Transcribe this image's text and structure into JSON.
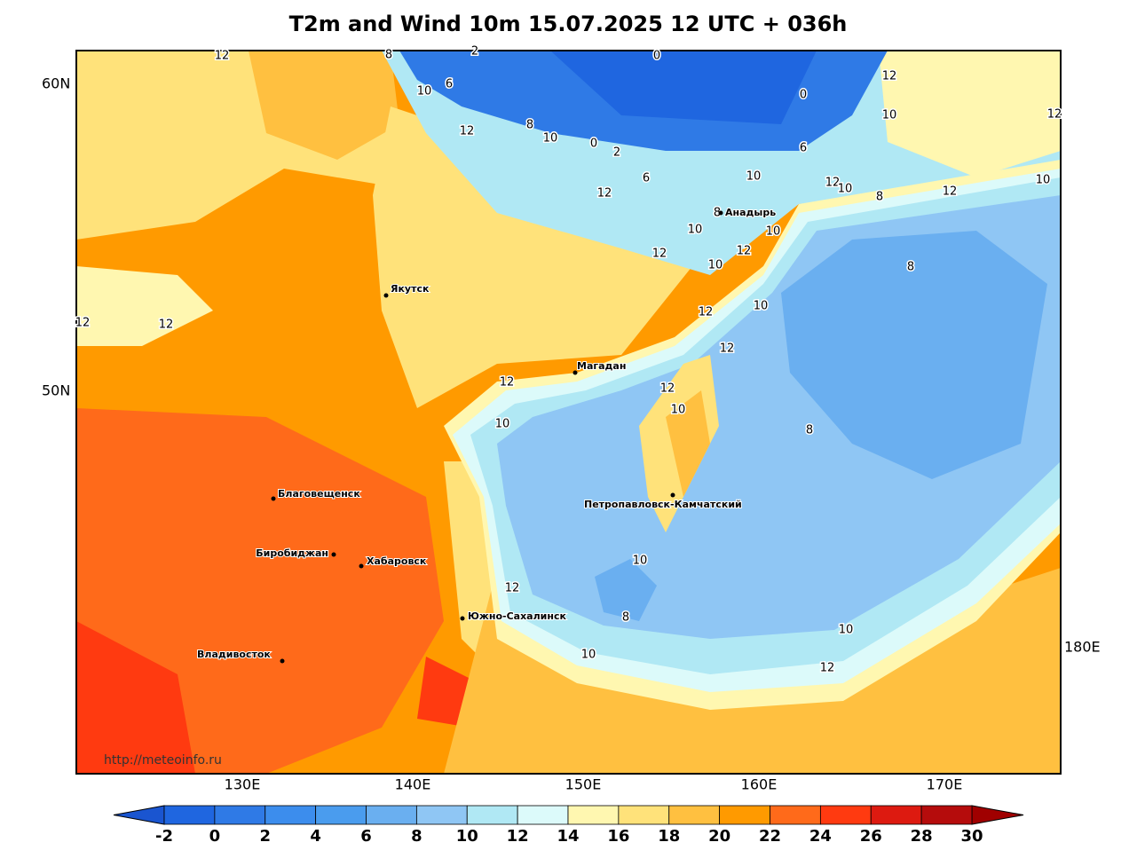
{
  "title": "T2m and Wind 10m 15.07.2025 12 UTC + 036h",
  "map": {
    "lat_labels": [
      "60N",
      "50N"
    ],
    "lon_labels": [
      "130E",
      "140E",
      "150E",
      "160E",
      "170E",
      "180E"
    ],
    "cities": [
      "Якутск",
      "Магадан",
      "Анадырь",
      "Благовещенск",
      "Биробиджан",
      "Хабаровск",
      "Петропавловск-Камчатский",
      "Южно-Сахалинск",
      "Владивосток"
    ],
    "contour_labels": [
      12,
      8,
      10,
      6,
      2,
      0,
      0,
      12,
      10,
      12,
      12,
      8,
      10,
      0,
      2,
      6,
      12,
      10,
      6,
      12,
      10,
      8,
      12,
      10,
      8,
      10,
      10,
      12,
      12,
      10,
      8,
      12,
      10,
      12,
      12,
      12,
      12,
      12,
      10,
      10,
      8,
      10,
      12,
      8,
      10,
      10,
      12
    ],
    "watermark": "http://meteoinfo.ru"
  },
  "colorbar": {
    "ticks": [
      -2,
      0,
      2,
      4,
      6,
      8,
      10,
      12,
      14,
      16,
      18,
      20,
      22,
      24,
      26,
      28,
      30
    ],
    "colors": [
      "#1f66e0",
      "#2f7ae6",
      "#3c8ded",
      "#4a9cee",
      "#6aaff0",
      "#8fc6f4",
      "#b0e8f4",
      "#dcfafa",
      "#fff7b0",
      "#ffe27a",
      "#ffc040",
      "#ff9a00",
      "#ff6a1a",
      "#ff3a10",
      "#dd1a10",
      "#b50c0c"
    ],
    "under_color": "#1a55d0",
    "over_color": "#a00000"
  }
}
